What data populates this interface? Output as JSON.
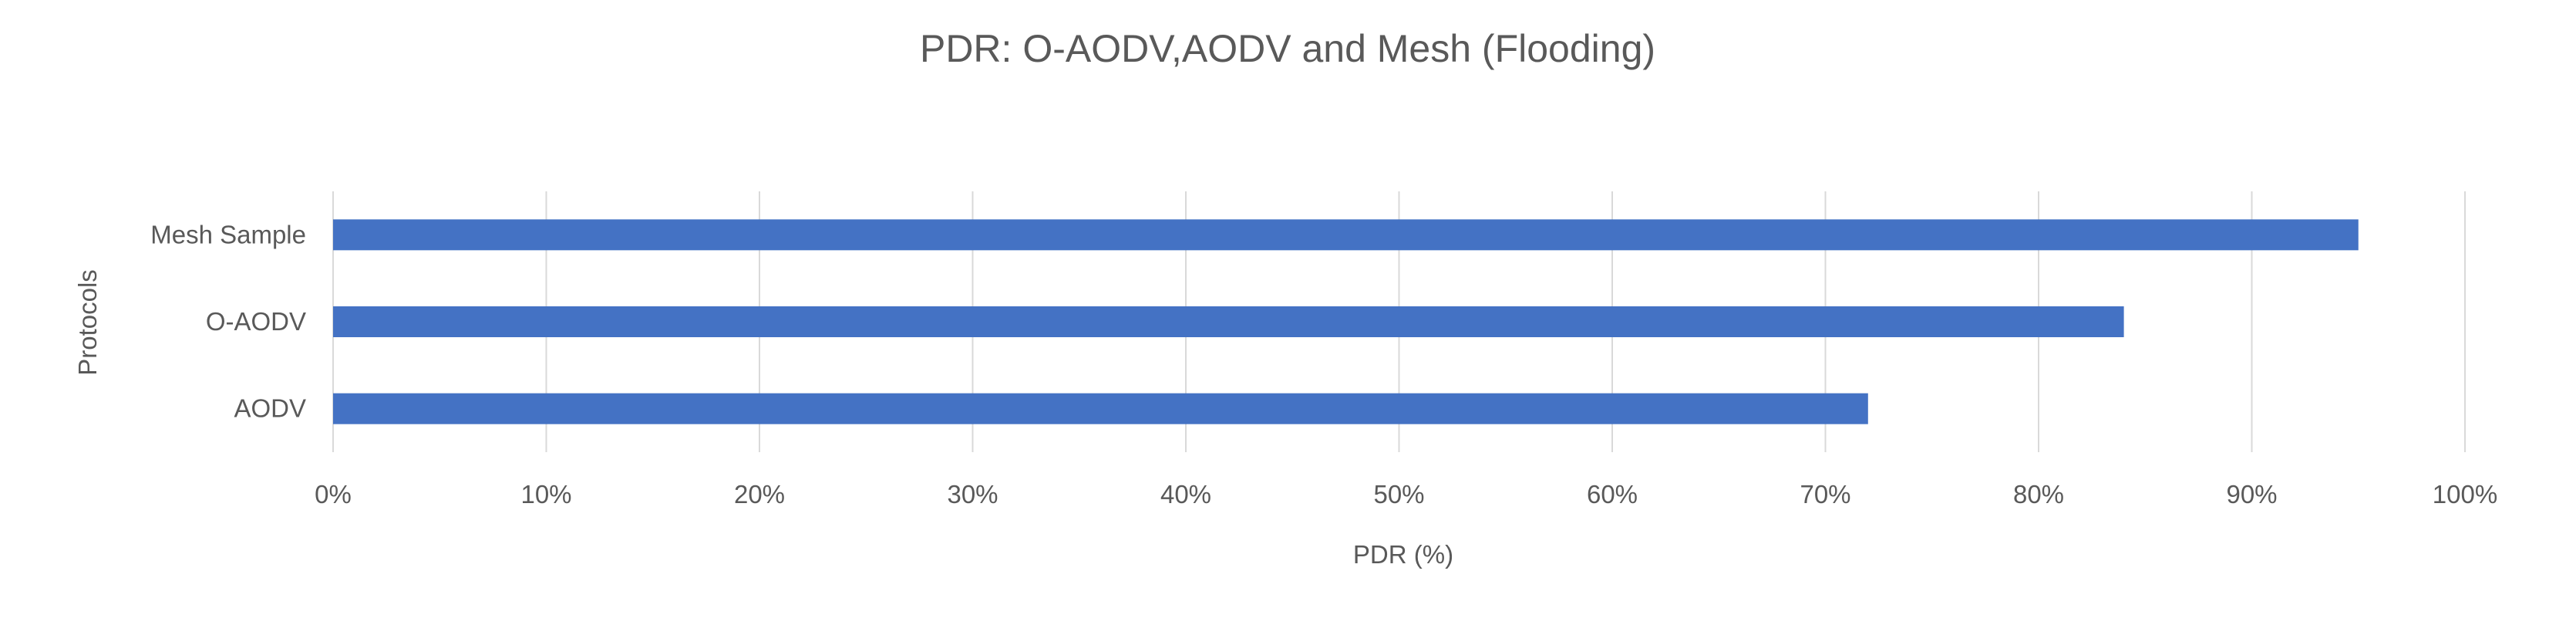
{
  "chart_data": {
    "type": "bar",
    "orientation": "horizontal",
    "title": "PDR: O-AODV,AODV and Mesh (Flooding)",
    "xlabel": "PDR (%)",
    "ylabel": "Protocols",
    "categories": [
      "AODV",
      "O-AODV",
      "Mesh Sample"
    ],
    "values": [
      0.72,
      0.84,
      0.95
    ],
    "xlim": [
      0,
      1
    ],
    "x_ticks": [
      "0%",
      "10%",
      "20%",
      "30%",
      "40%",
      "50%",
      "60%",
      "70%",
      "80%",
      "90%",
      "100%"
    ],
    "grid": "vertical",
    "legend": "none",
    "bar_color": "#4472C4",
    "grid_color": "#D9D9D9",
    "text_color": "#595959"
  }
}
